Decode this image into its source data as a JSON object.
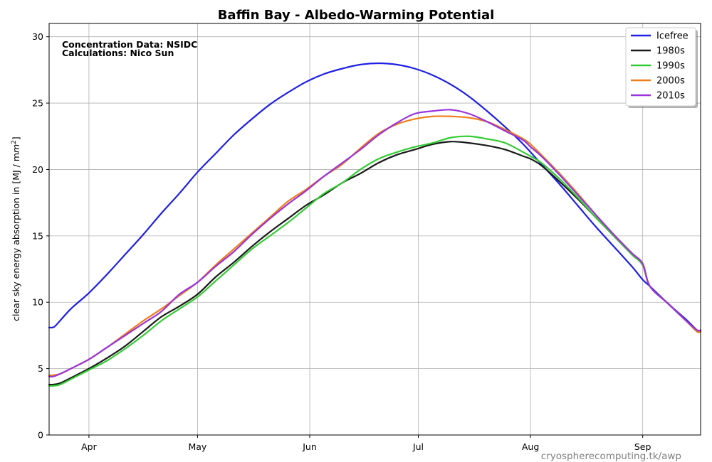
{
  "chart_data": {
    "type": "line",
    "title": "Baffin Bay - Albedo-Warming Potential",
    "ylabel_prefix": "clear sky energy absorption in  [MJ / m",
    "ylabel_sup": "2",
    "ylabel_suffix": "]",
    "xlabel": "",
    "ylim": [
      0,
      31
    ],
    "y_ticks": [
      0,
      5,
      10,
      15,
      20,
      25,
      30
    ],
    "x_day_range": [
      79,
      259
    ],
    "x_ticks": [
      {
        "label": "Apr",
        "day": 90
      },
      {
        "label": "May",
        "day": 120
      },
      {
        "label": "Jun",
        "day": 151
      },
      {
        "label": "Jul",
        "day": 181
      },
      {
        "label": "Aug",
        "day": 212
      },
      {
        "label": "Sep",
        "day": 243
      }
    ],
    "grid": true,
    "legend_position": "top-right",
    "annotations": [
      "Concentration Data: NSIDC",
      "Calculations: Nico Sun"
    ],
    "watermark": "cryospherecomputing.tk/awp",
    "series": [
      {
        "name": "Icefree",
        "color": "#1f1fe5",
        "points": [
          [
            79,
            8.1
          ],
          [
            80,
            8.1
          ],
          [
            81,
            8.3
          ],
          [
            85,
            9.5
          ],
          [
            90,
            10.7
          ],
          [
            95,
            12.1
          ],
          [
            100,
            13.6
          ],
          [
            105,
            15.1
          ],
          [
            110,
            16.7
          ],
          [
            115,
            18.2
          ],
          [
            120,
            19.8
          ],
          [
            125,
            21.2
          ],
          [
            130,
            22.6
          ],
          [
            135,
            23.8
          ],
          [
            140,
            24.9
          ],
          [
            145,
            25.8
          ],
          [
            150,
            26.6
          ],
          [
            155,
            27.2
          ],
          [
            160,
            27.6
          ],
          [
            165,
            27.9
          ],
          [
            170,
            28.0
          ],
          [
            175,
            27.9
          ],
          [
            180,
            27.6
          ],
          [
            185,
            27.1
          ],
          [
            190,
            26.4
          ],
          [
            195,
            25.5
          ],
          [
            200,
            24.4
          ],
          [
            205,
            23.2
          ],
          [
            210,
            21.9
          ],
          [
            215,
            20.4
          ],
          [
            220,
            18.9
          ],
          [
            225,
            17.3
          ],
          [
            230,
            15.7
          ],
          [
            235,
            14.2
          ],
          [
            240,
            12.7
          ],
          [
            243,
            11.7
          ],
          [
            245,
            11.2
          ],
          [
            250,
            9.9
          ],
          [
            255,
            8.7
          ],
          [
            258,
            7.9
          ],
          [
            259,
            7.9
          ]
        ]
      },
      {
        "name": "1980s",
        "color": "#1a1a1a",
        "points": [
          [
            79,
            3.8
          ],
          [
            80,
            3.8
          ],
          [
            82,
            3.9
          ],
          [
            85,
            4.3
          ],
          [
            90,
            5.0
          ],
          [
            95,
            5.8
          ],
          [
            100,
            6.7
          ],
          [
            105,
            7.8
          ],
          [
            110,
            8.9
          ],
          [
            115,
            9.7
          ],
          [
            120,
            10.6
          ],
          [
            125,
            11.9
          ],
          [
            130,
            13.0
          ],
          [
            135,
            14.2
          ],
          [
            140,
            15.3
          ],
          [
            145,
            16.3
          ],
          [
            150,
            17.3
          ],
          [
            155,
            18.1
          ],
          [
            160,
            19.0
          ],
          [
            165,
            19.7
          ],
          [
            170,
            20.5
          ],
          [
            175,
            21.1
          ],
          [
            180,
            21.5
          ],
          [
            185,
            21.9
          ],
          [
            190,
            22.1
          ],
          [
            195,
            22.0
          ],
          [
            200,
            21.8
          ],
          [
            205,
            21.5
          ],
          [
            210,
            21.0
          ],
          [
            212,
            20.8
          ],
          [
            215,
            20.3
          ],
          [
            220,
            19.1
          ],
          [
            225,
            17.8
          ],
          [
            230,
            16.4
          ],
          [
            235,
            15.0
          ],
          [
            240,
            13.6
          ],
          [
            243,
            12.8
          ],
          [
            245,
            11.2
          ],
          [
            250,
            9.9
          ],
          [
            255,
            8.6
          ],
          [
            258,
            7.8
          ],
          [
            259,
            7.8
          ]
        ]
      },
      {
        "name": "1990s",
        "color": "#33cc33",
        "points": [
          [
            79,
            3.7
          ],
          [
            80,
            3.7
          ],
          [
            82,
            3.8
          ],
          [
            85,
            4.2
          ],
          [
            90,
            4.9
          ],
          [
            95,
            5.6
          ],
          [
            100,
            6.5
          ],
          [
            105,
            7.5
          ],
          [
            110,
            8.6
          ],
          [
            115,
            9.5
          ],
          [
            120,
            10.4
          ],
          [
            125,
            11.6
          ],
          [
            130,
            12.8
          ],
          [
            135,
            14.0
          ],
          [
            140,
            15.0
          ],
          [
            145,
            16.0
          ],
          [
            150,
            17.1
          ],
          [
            155,
            18.2
          ],
          [
            160,
            19.0
          ],
          [
            165,
            20.0
          ],
          [
            170,
            20.8
          ],
          [
            175,
            21.3
          ],
          [
            180,
            21.7
          ],
          [
            185,
            22.0
          ],
          [
            190,
            22.4
          ],
          [
            195,
            22.5
          ],
          [
            200,
            22.3
          ],
          [
            205,
            22.0
          ],
          [
            210,
            21.3
          ],
          [
            212,
            21.0
          ],
          [
            215,
            20.5
          ],
          [
            220,
            19.3
          ],
          [
            225,
            17.9
          ],
          [
            230,
            16.4
          ],
          [
            235,
            15.0
          ],
          [
            240,
            13.6
          ],
          [
            243,
            12.8
          ],
          [
            245,
            11.2
          ],
          [
            250,
            9.9
          ],
          [
            255,
            8.6
          ],
          [
            258,
            7.8
          ],
          [
            259,
            7.8
          ]
        ]
      },
      {
        "name": "2000s",
        "color": "#ee7f1a",
        "points": [
          [
            79,
            4.5
          ],
          [
            80,
            4.5
          ],
          [
            82,
            4.6
          ],
          [
            85,
            5.0
          ],
          [
            90,
            5.7
          ],
          [
            95,
            6.6
          ],
          [
            100,
            7.6
          ],
          [
            105,
            8.6
          ],
          [
            110,
            9.5
          ],
          [
            115,
            10.5
          ],
          [
            120,
            11.5
          ],
          [
            125,
            12.8
          ],
          [
            130,
            14.0
          ],
          [
            135,
            15.2
          ],
          [
            140,
            16.4
          ],
          [
            145,
            17.6
          ],
          [
            150,
            18.5
          ],
          [
            155,
            19.5
          ],
          [
            160,
            20.4
          ],
          [
            165,
            21.6
          ],
          [
            170,
            22.7
          ],
          [
            175,
            23.4
          ],
          [
            180,
            23.8
          ],
          [
            185,
            24.0
          ],
          [
            190,
            24.0
          ],
          [
            195,
            23.9
          ],
          [
            200,
            23.6
          ],
          [
            205,
            23.0
          ],
          [
            210,
            22.3
          ],
          [
            212,
            21.9
          ],
          [
            215,
            21.1
          ],
          [
            220,
            19.7
          ],
          [
            225,
            18.2
          ],
          [
            230,
            16.6
          ],
          [
            235,
            15.1
          ],
          [
            240,
            13.7
          ],
          [
            243,
            12.9
          ],
          [
            245,
            11.2
          ],
          [
            250,
            9.9
          ],
          [
            255,
            8.6
          ],
          [
            258,
            7.8
          ],
          [
            259,
            7.8
          ]
        ]
      },
      {
        "name": "2010s",
        "color": "#9933dd",
        "points": [
          [
            79,
            4.4
          ],
          [
            80,
            4.4
          ],
          [
            82,
            4.6
          ],
          [
            85,
            5.0
          ],
          [
            90,
            5.7
          ],
          [
            95,
            6.6
          ],
          [
            100,
            7.5
          ],
          [
            105,
            8.4
          ],
          [
            110,
            9.3
          ],
          [
            115,
            10.6
          ],
          [
            120,
            11.5
          ],
          [
            125,
            12.7
          ],
          [
            130,
            13.8
          ],
          [
            135,
            15.1
          ],
          [
            140,
            16.3
          ],
          [
            145,
            17.4
          ],
          [
            150,
            18.4
          ],
          [
            155,
            19.5
          ],
          [
            160,
            20.5
          ],
          [
            165,
            21.5
          ],
          [
            170,
            22.6
          ],
          [
            175,
            23.5
          ],
          [
            180,
            24.2
          ],
          [
            185,
            24.4
          ],
          [
            190,
            24.5
          ],
          [
            195,
            24.2
          ],
          [
            200,
            23.6
          ],
          [
            205,
            22.9
          ],
          [
            210,
            22.2
          ],
          [
            212,
            21.7
          ],
          [
            215,
            21.0
          ],
          [
            220,
            19.6
          ],
          [
            225,
            18.1
          ],
          [
            230,
            16.6
          ],
          [
            235,
            15.1
          ],
          [
            240,
            13.7
          ],
          [
            243,
            12.9
          ],
          [
            245,
            11.2
          ],
          [
            250,
            9.9
          ],
          [
            255,
            8.6
          ],
          [
            258,
            7.9
          ],
          [
            259,
            7.9
          ]
        ]
      }
    ]
  }
}
